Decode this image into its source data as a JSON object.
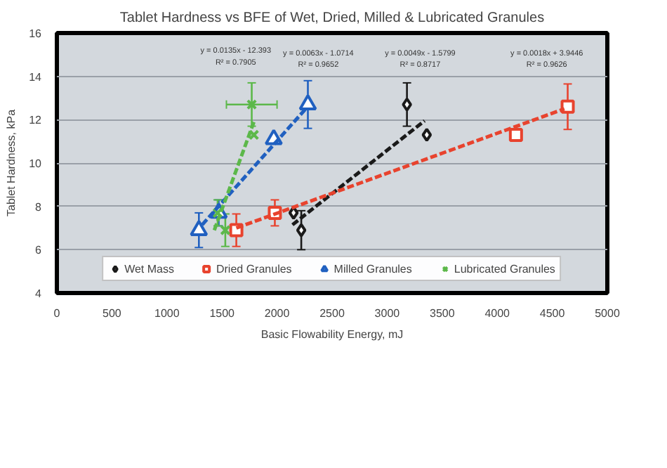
{
  "chart_data": {
    "type": "scatter",
    "title": "Tablet Hardness vs BFE of Wet, Dried, Milled & Lubricated Granules",
    "xlabel": "Basic Flowability Energy, mJ",
    "ylabel": "Tablet Hardness, kPa",
    "xlim": [
      0,
      5000
    ],
    "xticks": [
      0,
      500,
      1000,
      1500,
      2000,
      2500,
      3000,
      3500,
      4000,
      4500,
      5000
    ],
    "ylim": [
      4,
      16
    ],
    "yticks": [
      4,
      6,
      8,
      10,
      12,
      14,
      16
    ],
    "grid": "y",
    "legend": "bottom",
    "series": [
      {
        "name": "Wet Mass",
        "marker": "diamond",
        "color": "#1a1a1a",
        "x": [
          2150,
          2220,
          3180,
          3360
        ],
        "values": [
          7.7,
          6.9,
          12.7,
          11.3
        ],
        "errors": [
          null,
          0.9,
          1.0,
          null
        ]
      },
      {
        "name": "Dried Granules",
        "marker": "square",
        "color": "#e8432e",
        "x": [
          1630,
          1980,
          4170,
          4640
        ],
        "values": [
          6.9,
          7.7,
          11.3,
          12.6
        ],
        "errors": [
          0.75,
          0.6,
          null,
          1.05
        ]
      },
      {
        "name": "Milled Granules",
        "marker": "triangle",
        "color": "#2060c0",
        "x": [
          1290,
          1470,
          1970,
          2280
        ],
        "values": [
          6.9,
          7.7,
          11.1,
          12.7
        ],
        "errors": [
          0.8,
          0.6,
          null,
          1.1
        ]
      },
      {
        "name": "Lubricated Granules",
        "marker": "cross",
        "color": "#5cb84a",
        "x": [
          1460,
          1530,
          1790,
          1770
        ],
        "values": [
          7.7,
          6.9,
          11.3,
          12.7
        ],
        "errors": [
          0.6,
          0.75,
          null,
          1.0
        ],
        "xerrors": [
          null,
          null,
          null,
          230
        ]
      },
      {
        "type": "line",
        "line_style": "dashed",
        "color": "#1a1a1a",
        "x": [
          2140,
          3340
        ],
        "values": [
          7.15,
          11.95
        ]
      },
      {
        "type": "line",
        "line_style": "dashed",
        "color": "#e8432e",
        "x": [
          1630,
          4610
        ],
        "values": [
          7.0,
          12.5
        ]
      },
      {
        "type": "line",
        "line_style": "dashed",
        "color": "#2060c0",
        "x": [
          1320,
          2260
        ],
        "values": [
          7.15,
          12.5
        ]
      },
      {
        "type": "line",
        "line_style": "dashed",
        "color": "#5cb84a",
        "x": [
          1430,
          1790
        ],
        "values": [
          6.9,
          11.9
        ]
      }
    ],
    "annotations": [
      "y = 0.0135x - 12.393",
      "R² = 0.7905",
      "y = 0.0063x - 1.0714",
      "R² = 0.9652",
      "y = 0.0049x - 1.5799",
      "R² = 0.8717",
      "y = 0.0018x + 3.9446",
      "R² = 0.9626"
    ]
  }
}
